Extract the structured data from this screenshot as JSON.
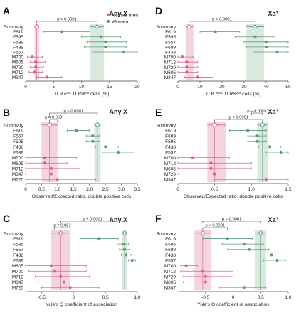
{
  "colors": {
    "men": "#d9638f",
    "women": "#5b9a7d",
    "men_band": "#f1c9d7",
    "women_band": "#cfe3d6",
    "axis": "#444444"
  },
  "legend": {
    "men": "Normal men",
    "women": "Women"
  },
  "chart_data": [
    {
      "panel": "A",
      "tag": "Any X",
      "tag_sup": "",
      "type": "forest",
      "xlabel": "TLR7",
      "xlabel_parts": [
        "TLR7",
        "pos",
        " TLR8",
        "pos",
        " cells (%)"
      ],
      "xlim": [
        0,
        20
      ],
      "xticks": [
        "0",
        "5",
        "10",
        "15",
        "20"
      ],
      "xtick_values": [
        0,
        5,
        10,
        15,
        20
      ],
      "rows": [
        "Summary",
        "F619",
        "F595",
        "F689",
        "F438",
        "F557",
        "M700",
        "M605",
        "M720",
        "M712",
        "M347"
      ],
      "summary": {
        "men": {
          "value": 2,
          "band": [
            1.6,
            2.4
          ]
        },
        "women": {
          "value": 12.8,
          "band": [
            11.5,
            14
          ]
        }
      },
      "points": [
        {
          "label": "F619",
          "group": "women",
          "value": 6.5,
          "ci": [
            3.2,
            11.5
          ]
        },
        {
          "label": "F595",
          "group": "women",
          "value": 13.5,
          "ci": [
            10,
            17
          ]
        },
        {
          "label": "F689",
          "group": "women",
          "value": 14.3,
          "ci": [
            11,
            18
          ]
        },
        {
          "label": "F438",
          "group": "women",
          "value": 14.3,
          "ci": [
            10.5,
            18
          ]
        },
        {
          "label": "F557",
          "group": "women",
          "value": 17.5,
          "ci": [
            12,
            20
          ]
        },
        {
          "label": "M700",
          "group": "men",
          "value": 1.2,
          "ci": [
            0.3,
            3
          ]
        },
        {
          "label": "M605",
          "group": "men",
          "value": 1.8,
          "ci": [
            0.8,
            3.5
          ]
        },
        {
          "label": "M720",
          "group": "men",
          "value": 1.8,
          "ci": [
            0.8,
            3.2
          ]
        },
        {
          "label": "M712",
          "group": "men",
          "value": 1.6,
          "ci": [
            0.6,
            3
          ]
        },
        {
          "label": "M347",
          "group": "men",
          "value": 3.8,
          "ci": [
            1.8,
            6.5
          ]
        }
      ],
      "brackets": [
        {
          "text": "p < 0.0001",
          "from": 2,
          "to": 12.8,
          "level": 1
        }
      ]
    },
    {
      "panel": "B",
      "tag": "Any X",
      "tag_sup": "",
      "type": "forest",
      "xlabel": "Observed/Expected  ratio, double positive cells",
      "xlabel_parts": [],
      "xlim": [
        0,
        3.5
      ],
      "xticks": [
        "0",
        "0.5",
        "1.0",
        "1.5",
        "2.0",
        "2.5",
        "3.0",
        "3.5"
      ],
      "xtick_values": [
        0,
        0.5,
        1,
        1.5,
        2,
        2.5,
        3,
        3.5
      ],
      "rows": [
        "Summary",
        "F619",
        "F557",
        "F595",
        "F438",
        "F689",
        "M700",
        "M605",
        "M712",
        "M347",
        "M720"
      ],
      "summary": {
        "men": {
          "value": 0.75,
          "band": [
            0.5,
            1.0
          ]
        },
        "women": {
          "value": 2.25,
          "band": [
            2.15,
            2.35
          ]
        }
      },
      "points": [
        {
          "label": "F619",
          "group": "women",
          "value": 1.6,
          "ci": [
            1.3,
            2.0
          ]
        },
        {
          "label": "F557",
          "group": "women",
          "value": 2.1,
          "ci": [
            1.9,
            2.3
          ]
        },
        {
          "label": "F595",
          "group": "women",
          "value": 2.1,
          "ci": [
            1.9,
            2.3
          ]
        },
        {
          "label": "F438",
          "group": "women",
          "value": 2.5,
          "ci": [
            2.2,
            2.9
          ]
        },
        {
          "label": "F689",
          "group": "women",
          "value": 2.9,
          "ci": [
            2.4,
            3.4
          ]
        },
        {
          "label": "M700",
          "group": "men",
          "value": 0.6,
          "ci": [
            0,
            1.6
          ]
        },
        {
          "label": "M605",
          "group": "men",
          "value": 0.6,
          "ci": [
            0,
            1.3
          ]
        },
        {
          "label": "M712",
          "group": "men",
          "value": 0.8,
          "ci": [
            0,
            1.7
          ]
        },
        {
          "label": "M347",
          "group": "men",
          "value": 0.8,
          "ci": [
            0,
            1.8
          ]
        },
        {
          "label": "M720",
          "group": "men",
          "value": 1.0,
          "ci": [
            0,
            2.2
          ]
        }
      ],
      "brackets": [
        {
          "text": "p = 0.053",
          "from": 0.75,
          "to": 1.0,
          "level": 1
        },
        {
          "text": "p < 0.0001",
          "from": 0.75,
          "to": 2.25,
          "level": 2
        }
      ]
    },
    {
      "panel": "C",
      "tag": "Any X",
      "tag_sup": "",
      "type": "forest",
      "xlabel": "Yule's Q coefficient of association",
      "xlabel_parts": [],
      "xlim": [
        -0.75,
        1.0
      ],
      "xticks": [
        "-0.5",
        "0",
        "0.5",
        "1.0"
      ],
      "xtick_values": [
        -0.5,
        0,
        0.5,
        1
      ],
      "rows": [
        "Summary",
        "F619",
        "F595",
        "F557",
        "F438",
        "F689",
        "M605",
        "M700",
        "M712",
        "M347",
        "M720"
      ],
      "summary": {
        "men": {
          "value": -0.2,
          "band": [
            -0.35,
            -0.05
          ]
        },
        "women": {
          "value": 0.8,
          "band": [
            0.76,
            0.84
          ]
        }
      },
      "points": [
        {
          "label": "F619",
          "group": "women",
          "value": 0.4,
          "ci": [
            0.1,
            0.7
          ]
        },
        {
          "label": "F595",
          "group": "women",
          "value": 0.78,
          "ci": [
            0.68,
            0.86
          ]
        },
        {
          "label": "F557",
          "group": "women",
          "value": 0.8,
          "ci": [
            0.72,
            0.88
          ]
        },
        {
          "label": "F438",
          "group": "women",
          "value": 0.82,
          "ci": [
            0.75,
            0.9
          ]
        },
        {
          "label": "F689",
          "group": "women",
          "value": 0.92,
          "ci": [
            0.86,
            0.97
          ]
        },
        {
          "label": "M605",
          "group": "men",
          "value": -0.35,
          "ci": [
            -0.75,
            0.2
          ]
        },
        {
          "label": "M700",
          "group": "men",
          "value": -0.3,
          "ci": [
            -0.7,
            0.2
          ]
        },
        {
          "label": "M712",
          "group": "men",
          "value": -0.2,
          "ci": [
            -0.6,
            0.25
          ]
        },
        {
          "label": "M347",
          "group": "men",
          "value": -0.15,
          "ci": [
            -0.55,
            0.3
          ]
        },
        {
          "label": "M720",
          "group": "men",
          "value": -0.05,
          "ci": [
            -0.5,
            0.4
          ]
        }
      ],
      "brackets": [
        {
          "text": "p = 0.053",
          "from": -0.3,
          "to": -0.05,
          "level": 1
        },
        {
          "text": "p < 0.0001",
          "from": -0.2,
          "to": 0.8,
          "level": 2
        }
      ]
    },
    {
      "panel": "D",
      "tag": "Xa",
      "tag_sup": "+",
      "type": "forest",
      "xlabel": "TLR7",
      "xlabel_parts": [
        "TLR7",
        "pos",
        " TLR8",
        "pos",
        " cells (%)"
      ],
      "xlim": [
        0,
        50
      ],
      "xticks": [
        "0",
        "10",
        "20",
        "30",
        "40",
        "50"
      ],
      "xtick_values": [
        0,
        10,
        20,
        30,
        40,
        50
      ],
      "rows": [
        "Summary",
        "F619",
        "F595",
        "F557",
        "F689",
        "F438",
        "M700",
        "M712",
        "M720",
        "M605",
        "M347"
      ],
      "summary": {
        "men": {
          "value": 5,
          "band": [
            3.5,
            7
          ]
        },
        "women": {
          "value": 35,
          "band": [
            31,
            39
          ]
        }
      },
      "points": [
        {
          "label": "F619",
          "group": "women",
          "value": 17,
          "ci": [
            10,
            28
          ]
        },
        {
          "label": "F595",
          "group": "women",
          "value": 35,
          "ci": [
            26,
            44
          ]
        },
        {
          "label": "F557",
          "group": "women",
          "value": 40,
          "ci": [
            30,
            50
          ]
        },
        {
          "label": "F689",
          "group": "women",
          "value": 40,
          "ci": [
            31,
            50
          ]
        },
        {
          "label": "F438",
          "group": "women",
          "value": 45,
          "ci": [
            34,
            50
          ]
        },
        {
          "label": "M700",
          "group": "men",
          "value": 2,
          "ci": [
            0,
            7
          ]
        },
        {
          "label": "M712",
          "group": "men",
          "value": 4,
          "ci": [
            0,
            9
          ]
        },
        {
          "label": "M720",
          "group": "men",
          "value": 4,
          "ci": [
            0,
            9
          ]
        },
        {
          "label": "M605",
          "group": "men",
          "value": 4,
          "ci": [
            0,
            9
          ]
        },
        {
          "label": "M347",
          "group": "men",
          "value": 9,
          "ci": [
            3,
            16
          ]
        }
      ],
      "brackets": [
        {
          "text": "p < 0.0001",
          "from": 5,
          "to": 35,
          "level": 1
        }
      ]
    },
    {
      "panel": "E",
      "tag": "Xa",
      "tag_sup": "+",
      "type": "forest",
      "xlabel": "Observed/Expected  ratio, double positive cells",
      "xlabel_parts": [],
      "xlim": [
        0,
        1.5
      ],
      "xticks": [
        "0",
        "0.5",
        "1.0",
        "1.5"
      ],
      "xtick_values": [
        0,
        0.5,
        1,
        1.5
      ],
      "rows": [
        "Summary",
        "F619",
        "F689",
        "F595",
        "F438",
        "F557",
        "M700",
        "M712",
        "M605",
        "M720",
        "M347"
      ],
      "summary": {
        "men": {
          "value": 0.5,
          "band": [
            0.4,
            0.65
          ]
        },
        "women": {
          "value": 1.15,
          "band": [
            1.08,
            1.22
          ]
        }
      },
      "points": [
        {
          "label": "F619",
          "group": "women",
          "value": 0.95,
          "ci": [
            0.7,
            1.2
          ]
        },
        {
          "label": "F689",
          "group": "women",
          "value": 1.08,
          "ci": [
            0.95,
            1.2
          ]
        },
        {
          "label": "F595",
          "group": "women",
          "value": 1.08,
          "ci": [
            0.95,
            1.2
          ]
        },
        {
          "label": "F438",
          "group": "women",
          "value": 1.25,
          "ci": [
            1.1,
            1.4
          ]
        },
        {
          "label": "F557",
          "group": "women",
          "value": 1.4,
          "ci": [
            1.2,
            1.5
          ]
        },
        {
          "label": "M700",
          "group": "men",
          "value": 0.2,
          "ci": [
            0,
            0.7
          ]
        },
        {
          "label": "M712",
          "group": "men",
          "value": 0.45,
          "ci": [
            0,
            1.0
          ]
        },
        {
          "label": "M605",
          "group": "men",
          "value": 0.45,
          "ci": [
            0,
            1.0
          ]
        },
        {
          "label": "M720",
          "group": "men",
          "value": 0.5,
          "ci": [
            0,
            1.05
          ]
        },
        {
          "label": "M347",
          "group": "men",
          "value": 1.2,
          "ci": [
            0.5,
            1.5
          ]
        }
      ],
      "brackets": [
        {
          "text": "p < 0.0001",
          "from": 0.5,
          "to": 1.15,
          "level": 1
        },
        {
          "text": "p = 0.0001",
          "from": 1.0,
          "to": 1.15,
          "level": 2
        }
      ]
    },
    {
      "panel": "F",
      "tag": "Xa",
      "tag_sup": "+",
      "type": "forest",
      "xlabel": "Yule's Q coefficient of association",
      "xlabel_parts": [],
      "xlim": [
        -1.0,
        1.0
      ],
      "xticks": [
        "-0.5",
        "0",
        "0.5",
        "1.0"
      ],
      "xtick_values": [
        -0.5,
        0,
        0.5,
        1
      ],
      "rows": [
        "Summary",
        "F619",
        "F595",
        "F689",
        "F438",
        "F557",
        "M700",
        "M712",
        "M720",
        "M605",
        "M347"
      ],
      "summary": {
        "men": {
          "value": -0.55,
          "band": [
            -0.7,
            -0.4
          ]
        },
        "women": {
          "value": 0.5,
          "band": [
            0.4,
            0.6
          ]
        }
      },
      "points": [
        {
          "label": "F619",
          "group": "women",
          "value": -0.1,
          "ci": [
            -0.55,
            0.35
          ]
        },
        {
          "label": "F595",
          "group": "women",
          "value": 0.2,
          "ci": [
            -0.2,
            0.55
          ]
        },
        {
          "label": "F689",
          "group": "women",
          "value": 0.3,
          "ci": [
            -0.1,
            0.65
          ]
        },
        {
          "label": "F438",
          "group": "women",
          "value": 0.7,
          "ci": [
            0.4,
            0.9
          ]
        },
        {
          "label": "F557",
          "group": "women",
          "value": 0.8,
          "ci": [
            0.55,
            0.95
          ]
        },
        {
          "label": "M700",
          "group": "men",
          "value": -0.85,
          "ci": [
            -0.95,
            -0.65
          ]
        },
        {
          "label": "M712",
          "group": "men",
          "value": -0.55,
          "ci": [
            -0.95,
            0.0
          ]
        },
        {
          "label": "M720",
          "group": "men",
          "value": -0.5,
          "ci": [
            -0.9,
            0.0
          ]
        },
        {
          "label": "M605",
          "group": "men",
          "value": -0.5,
          "ci": [
            -0.9,
            0.0
          ]
        },
        {
          "label": "M347",
          "group": "men",
          "value": 0.2,
          "ci": [
            -0.25,
            0.6
          ]
        }
      ],
      "brackets": [
        {
          "text": "p < 0.0001",
          "from": -0.55,
          "to": -0.1,
          "level": 1
        },
        {
          "text": "p < 0.0001",
          "from": -0.55,
          "to": 0.5,
          "level": 2
        }
      ]
    }
  ]
}
